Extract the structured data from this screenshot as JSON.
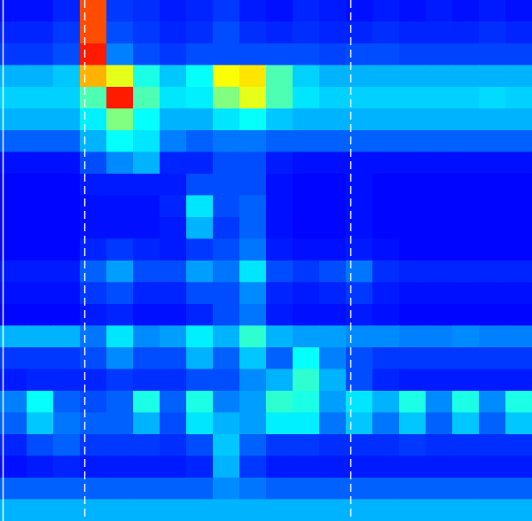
{
  "chart_data": {
    "type": "heatmap",
    "tick_labels": false,
    "color": "jet",
    "xlim": [
      0,
      20
    ],
    "ylim": [
      0,
      24
    ],
    "clim": [
      0,
      1
    ],
    "vlines": [
      {
        "x": 0.1,
        "line_style": "solid"
      },
      {
        "x": 3.17,
        "line_style": "dashed"
      },
      {
        "x": 13.17,
        "line_style": "dashed"
      }
    ],
    "cells": [
      [
        0.14,
        0.14,
        0.16,
        0.8,
        0.18,
        0.17,
        0.15,
        0.16,
        0.18,
        0.15,
        0.14,
        0.16,
        0.15,
        0.14,
        0.15,
        0.14,
        0.15,
        0.14,
        0.15,
        0.14
      ],
      [
        0.16,
        0.16,
        0.18,
        0.8,
        0.2,
        0.18,
        0.16,
        0.17,
        0.2,
        0.17,
        0.16,
        0.17,
        0.16,
        0.16,
        0.17,
        0.16,
        0.16,
        0.16,
        0.17,
        0.16
      ],
      [
        0.18,
        0.18,
        0.2,
        0.85,
        0.25,
        0.2,
        0.18,
        0.2,
        0.2,
        0.2,
        0.2,
        0.2,
        0.19,
        0.2,
        0.2,
        0.19,
        0.19,
        0.19,
        0.19,
        0.19
      ],
      [
        0.3,
        0.3,
        0.32,
        0.7,
        0.6,
        0.4,
        0.32,
        0.38,
        0.62,
        0.65,
        0.45,
        0.33,
        0.3,
        0.3,
        0.3,
        0.3,
        0.3,
        0.3,
        0.3,
        0.3
      ],
      [
        0.33,
        0.33,
        0.33,
        0.45,
        0.85,
        0.45,
        0.35,
        0.36,
        0.5,
        0.6,
        0.45,
        0.35,
        0.33,
        0.33,
        0.33,
        0.33,
        0.33,
        0.33,
        0.34,
        0.33
      ],
      [
        0.3,
        0.3,
        0.3,
        0.36,
        0.5,
        0.38,
        0.3,
        0.3,
        0.35,
        0.38,
        0.32,
        0.3,
        0.3,
        0.3,
        0.3,
        0.3,
        0.3,
        0.3,
        0.3,
        0.3
      ],
      [
        0.22,
        0.22,
        0.22,
        0.3,
        0.38,
        0.35,
        0.25,
        0.22,
        0.24,
        0.24,
        0.22,
        0.22,
        0.22,
        0.22,
        0.22,
        0.22,
        0.22,
        0.22,
        0.22,
        0.22
      ],
      [
        0.14,
        0.14,
        0.14,
        0.2,
        0.26,
        0.3,
        0.16,
        0.16,
        0.2,
        0.2,
        0.15,
        0.14,
        0.14,
        0.14,
        0.14,
        0.14,
        0.14,
        0.14,
        0.14,
        0.14
      ],
      [
        0.13,
        0.13,
        0.13,
        0.15,
        0.15,
        0.15,
        0.15,
        0.2,
        0.2,
        0.2,
        0.14,
        0.13,
        0.13,
        0.14,
        0.13,
        0.13,
        0.13,
        0.13,
        0.13,
        0.13
      ],
      [
        0.13,
        0.13,
        0.13,
        0.14,
        0.14,
        0.14,
        0.16,
        0.35,
        0.2,
        0.22,
        0.14,
        0.13,
        0.13,
        0.14,
        0.13,
        0.13,
        0.13,
        0.13,
        0.13,
        0.13
      ],
      [
        0.13,
        0.13,
        0.13,
        0.14,
        0.14,
        0.14,
        0.15,
        0.3,
        0.18,
        0.22,
        0.14,
        0.13,
        0.13,
        0.14,
        0.13,
        0.13,
        0.13,
        0.13,
        0.13,
        0.13
      ],
      [
        0.13,
        0.13,
        0.13,
        0.16,
        0.18,
        0.16,
        0.15,
        0.18,
        0.2,
        0.24,
        0.15,
        0.14,
        0.14,
        0.15,
        0.14,
        0.13,
        0.13,
        0.13,
        0.13,
        0.13
      ],
      [
        0.15,
        0.15,
        0.15,
        0.22,
        0.28,
        0.2,
        0.2,
        0.28,
        0.24,
        0.35,
        0.2,
        0.18,
        0.2,
        0.24,
        0.17,
        0.16,
        0.16,
        0.16,
        0.16,
        0.16
      ],
      [
        0.14,
        0.14,
        0.14,
        0.18,
        0.2,
        0.16,
        0.16,
        0.2,
        0.2,
        0.26,
        0.16,
        0.15,
        0.16,
        0.18,
        0.15,
        0.14,
        0.14,
        0.14,
        0.14,
        0.14
      ],
      [
        0.13,
        0.13,
        0.13,
        0.15,
        0.16,
        0.14,
        0.14,
        0.16,
        0.2,
        0.24,
        0.15,
        0.14,
        0.14,
        0.15,
        0.14,
        0.13,
        0.13,
        0.13,
        0.13,
        0.13
      ],
      [
        0.3,
        0.3,
        0.3,
        0.24,
        0.35,
        0.26,
        0.28,
        0.36,
        0.3,
        0.42,
        0.3,
        0.28,
        0.28,
        0.26,
        0.26,
        0.25,
        0.25,
        0.26,
        0.25,
        0.25
      ],
      [
        0.18,
        0.18,
        0.18,
        0.2,
        0.26,
        0.2,
        0.2,
        0.3,
        0.22,
        0.32,
        0.22,
        0.38,
        0.25,
        0.2,
        0.18,
        0.18,
        0.18,
        0.18,
        0.18,
        0.18
      ],
      [
        0.15,
        0.16,
        0.16,
        0.16,
        0.18,
        0.17,
        0.17,
        0.2,
        0.2,
        0.26,
        0.3,
        0.42,
        0.3,
        0.2,
        0.16,
        0.15,
        0.15,
        0.15,
        0.15,
        0.15
      ],
      [
        0.25,
        0.38,
        0.22,
        0.2,
        0.22,
        0.4,
        0.22,
        0.4,
        0.25,
        0.28,
        0.42,
        0.4,
        0.28,
        0.35,
        0.3,
        0.4,
        0.26,
        0.4,
        0.26,
        0.4
      ],
      [
        0.22,
        0.32,
        0.24,
        0.22,
        0.22,
        0.3,
        0.2,
        0.35,
        0.3,
        0.28,
        0.36,
        0.36,
        0.24,
        0.32,
        0.24,
        0.32,
        0.22,
        0.32,
        0.22,
        0.32
      ],
      [
        0.16,
        0.2,
        0.22,
        0.18,
        0.18,
        0.18,
        0.17,
        0.2,
        0.32,
        0.22,
        0.18,
        0.18,
        0.17,
        0.17,
        0.17,
        0.18,
        0.17,
        0.17,
        0.17,
        0.17
      ],
      [
        0.14,
        0.15,
        0.16,
        0.15,
        0.15,
        0.15,
        0.15,
        0.16,
        0.3,
        0.18,
        0.15,
        0.15,
        0.15,
        0.15,
        0.15,
        0.15,
        0.15,
        0.15,
        0.15,
        0.15
      ],
      [
        0.22,
        0.22,
        0.22,
        0.22,
        0.22,
        0.22,
        0.22,
        0.22,
        0.26,
        0.24,
        0.22,
        0.22,
        0.22,
        0.22,
        0.22,
        0.22,
        0.22,
        0.22,
        0.22,
        0.22
      ],
      [
        0.3,
        0.3,
        0.3,
        0.3,
        0.3,
        0.3,
        0.3,
        0.3,
        0.3,
        0.3,
        0.3,
        0.3,
        0.3,
        0.3,
        0.3,
        0.3,
        0.3,
        0.3,
        0.3,
        0.3
      ]
    ]
  }
}
